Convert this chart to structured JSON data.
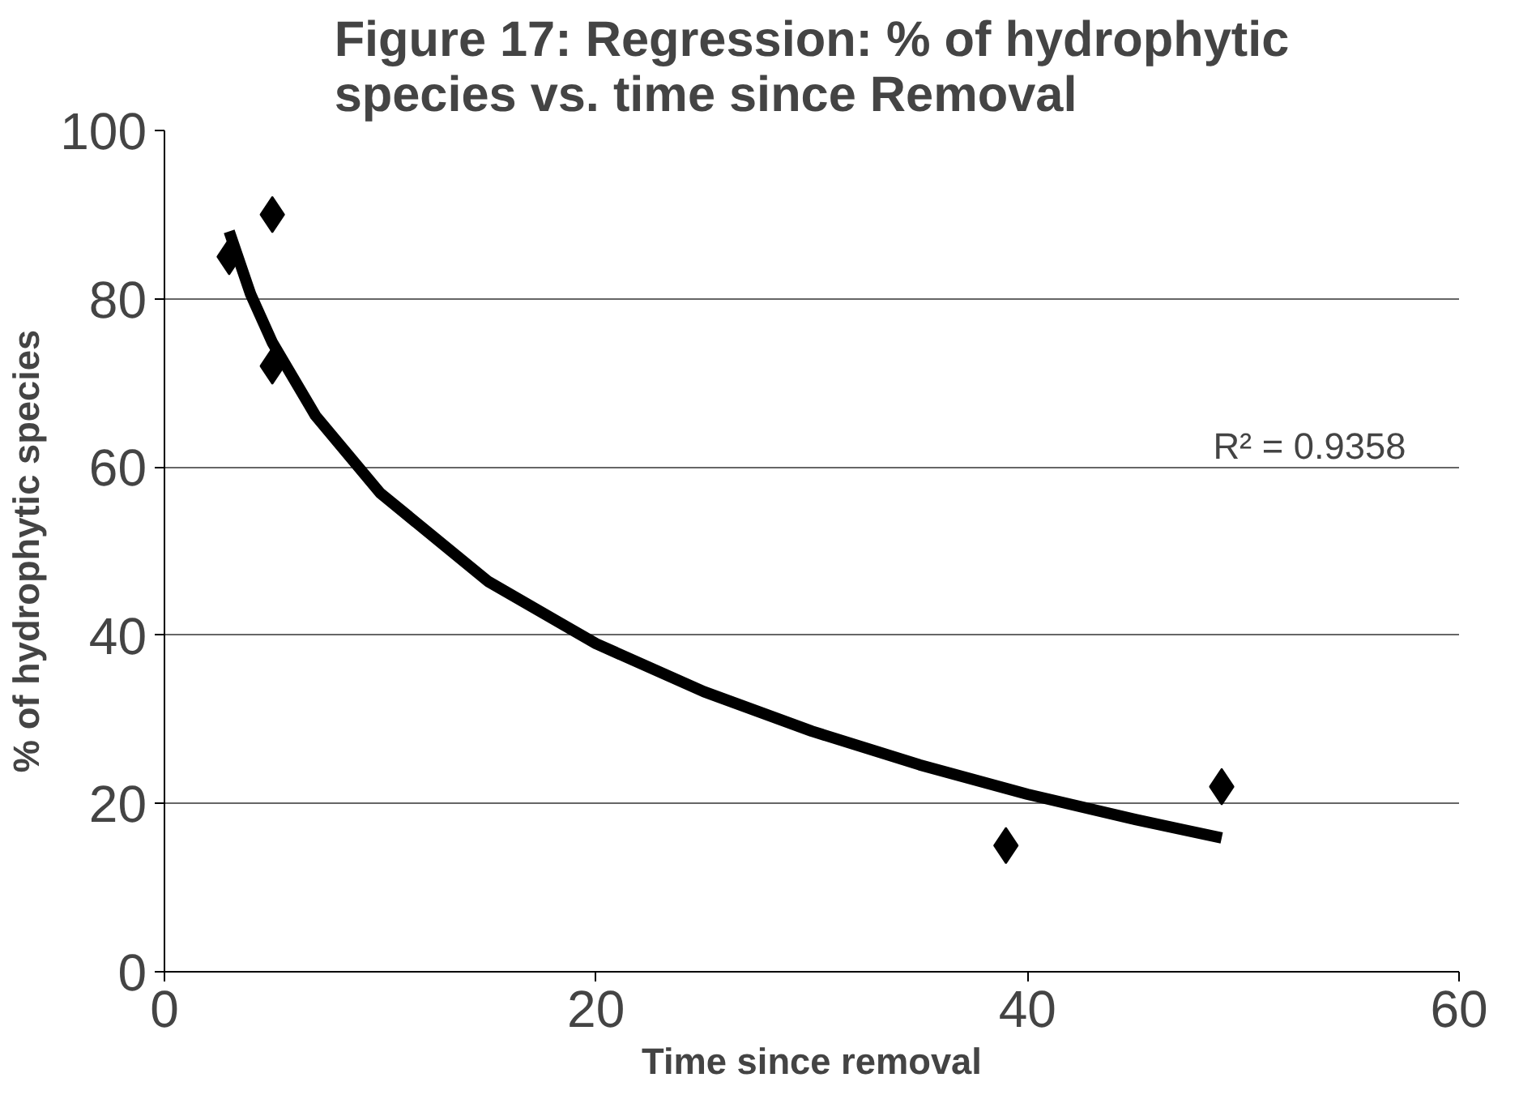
{
  "chart_data": {
    "type": "scatter",
    "title": "Figure 17: Regression: % of hydrophytic species vs. time since Removal",
    "xlabel": "Time since removal",
    "ylabel": "% of hydrophytic species",
    "xlim": [
      0,
      60
    ],
    "xticks": [
      0,
      20,
      40,
      60
    ],
    "ylim": [
      0,
      100
    ],
    "yticks": [
      0,
      20,
      40,
      60,
      80,
      100
    ],
    "grid": "y",
    "series": [
      {
        "marker": "diamond",
        "color": "#000000",
        "x": [
          3,
          5,
          5,
          39,
          49
        ],
        "values": [
          85,
          90,
          72,
          15,
          22
        ]
      },
      {
        "type": "line",
        "color": "#000000",
        "line_style": "solid",
        "x": [
          3,
          4,
          5,
          7,
          10,
          15,
          20,
          25,
          30,
          35,
          40,
          45,
          49
        ],
        "values": [
          88,
          80.5,
          74.8,
          66.1,
          56.9,
          46.4,
          39.0,
          33.3,
          28.6,
          24.6,
          21.1,
          18.1,
          15.9
        ]
      }
    ],
    "annotations": [
      "R² = 0.9358"
    ]
  }
}
